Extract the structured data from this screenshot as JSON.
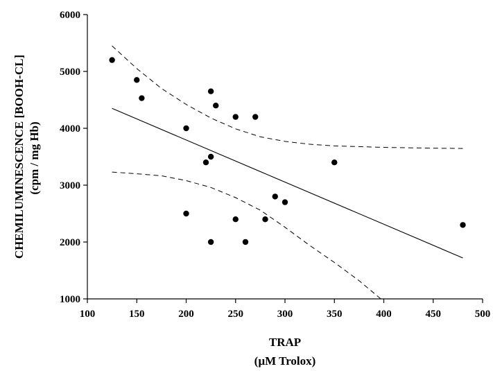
{
  "chart_data": {
    "type": "scatter",
    "title": "",
    "xlabel": [
      "TRAP",
      "(µM Trolox)"
    ],
    "ylabel": [
      "CHEMILUMINESCENCE [BOOH-CL]",
      "(cpm / mg Hb)"
    ],
    "xlim": [
      100,
      500
    ],
    "ylim": [
      1000,
      6000
    ],
    "x_ticks": [
      100,
      150,
      200,
      250,
      300,
      350,
      400,
      450,
      500
    ],
    "y_ticks": [
      1000,
      2000,
      3000,
      4000,
      5000,
      6000
    ],
    "x_tick_labels": [
      "100",
      "150",
      "200",
      "250",
      "300",
      "350",
      "400",
      "450",
      "500"
    ],
    "y_tick_labels": [
      "1000",
      "2000",
      "3000",
      "4000",
      "5000",
      "6000"
    ],
    "grid": false,
    "marker_color": "#000000",
    "points": [
      {
        "x": 125,
        "y": 5200
      },
      {
        "x": 150,
        "y": 4850
      },
      {
        "x": 155,
        "y": 4530
      },
      {
        "x": 200,
        "y": 4000
      },
      {
        "x": 200,
        "y": 2500
      },
      {
        "x": 220,
        "y": 3400
      },
      {
        "x": 225,
        "y": 4650
      },
      {
        "x": 225,
        "y": 3500
      },
      {
        "x": 225,
        "y": 2000
      },
      {
        "x": 230,
        "y": 4400
      },
      {
        "x": 250,
        "y": 4200
      },
      {
        "x": 250,
        "y": 2400
      },
      {
        "x": 260,
        "y": 2000
      },
      {
        "x": 270,
        "y": 4200
      },
      {
        "x": 280,
        "y": 2400
      },
      {
        "x": 290,
        "y": 2800
      },
      {
        "x": 300,
        "y": 2700
      },
      {
        "x": 350,
        "y": 3400
      },
      {
        "x": 480,
        "y": 2300
      }
    ],
    "regression_line": {
      "style": "solid",
      "x": [
        125,
        480
      ],
      "y": [
        4350,
        1720
      ]
    },
    "confidence_band": [
      {
        "style": "dashed",
        "x": [
          125,
          150,
          175,
          200,
          225,
          250,
          275,
          300,
          325,
          350,
          400,
          450,
          480
        ],
        "y": [
          5450,
          5050,
          4700,
          4420,
          4180,
          3990,
          3850,
          3770,
          3720,
          3690,
          3665,
          3650,
          3645
        ]
      },
      {
        "style": "dashed",
        "x": [
          125,
          150,
          175,
          200,
          225,
          250,
          275,
          300,
          325,
          350,
          375,
          397
        ],
        "y": [
          3230,
          3200,
          3165,
          3080,
          2960,
          2780,
          2560,
          2260,
          1940,
          1640,
          1320,
          1000
        ]
      }
    ]
  }
}
